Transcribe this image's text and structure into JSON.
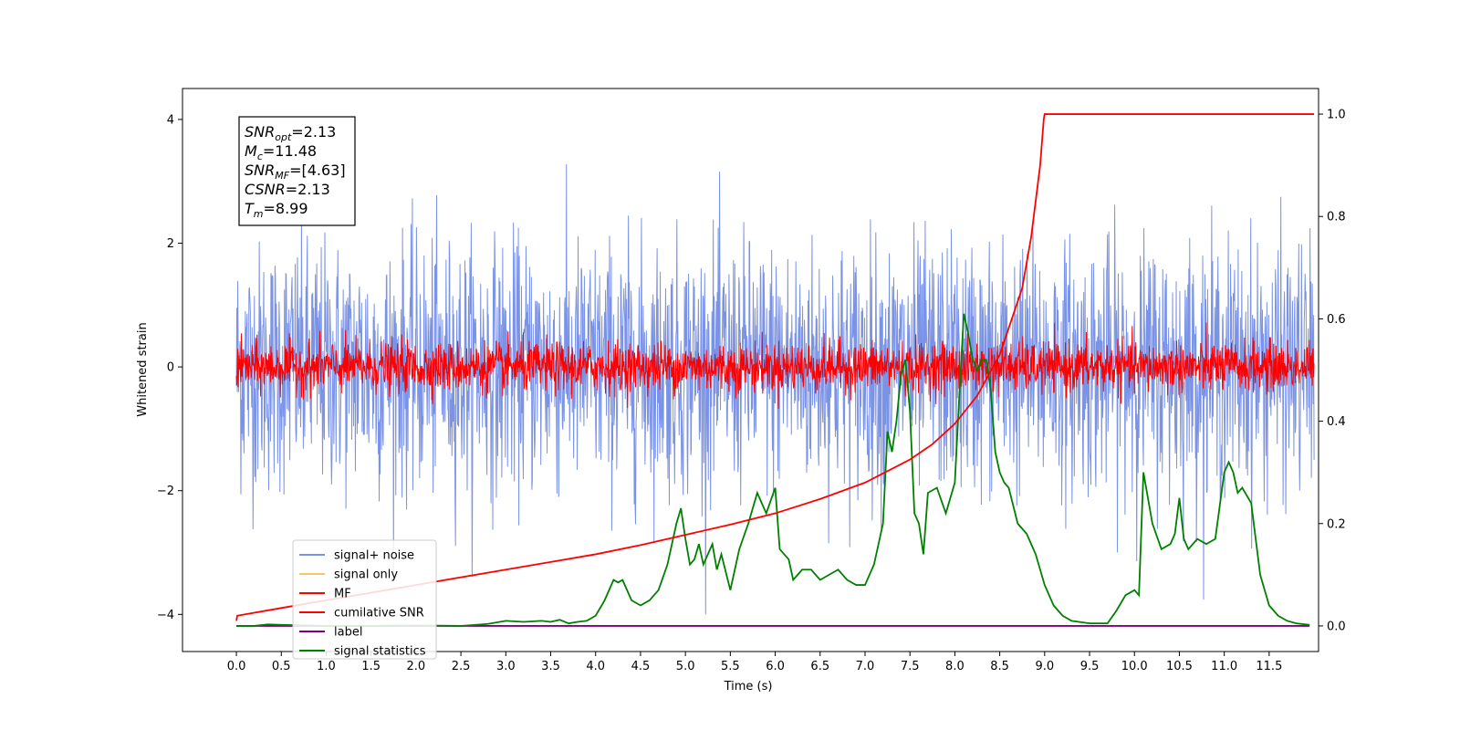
{
  "chart_data": {
    "type": "line",
    "xlabel": "Time (s)",
    "ylabel_left": "Whitened strain",
    "xlim": [
      -0.6,
      12.05
    ],
    "ylim_left": [
      -4.6,
      4.5
    ],
    "ylim_right": [
      -0.05,
      1.05
    ],
    "x_ticks": [
      "0.0",
      "0.5",
      "1.0",
      "1.5",
      "2.0",
      "2.5",
      "3.0",
      "3.5",
      "4.0",
      "4.5",
      "5.0",
      "5.5",
      "6.0",
      "6.5",
      "7.0",
      "7.5",
      "8.0",
      "8.5",
      "9.0",
      "9.5",
      "10.0",
      "10.5",
      "11.0",
      "11.5"
    ],
    "y_ticks_left": [
      "−4",
      "−2",
      "0",
      "2",
      "4"
    ],
    "y_ticks_right": [
      "0.0",
      "0.2",
      "0.4",
      "0.6",
      "0.8",
      "1.0"
    ],
    "legend_placement": "lower-left",
    "annotation": [
      {
        "var": "SNR",
        "sub": "opt",
        "value": "=2.13"
      },
      {
        "var": "M",
        "sub": "c",
        "value": "=11.48"
      },
      {
        "var": "SNR",
        "sub": "MF",
        "value": "=[4.63]"
      },
      {
        "var": "CSNR",
        "sub": "",
        "value": "=2.13"
      },
      {
        "var": "T",
        "sub": "m",
        "value": "=8.99"
      }
    ],
    "series": [
      {
        "name": "signal+ noise",
        "color": "#7b93e6",
        "axis": "left",
        "x_range": [
          0,
          12.0
        ],
        "std": 1.0,
        "note_shape": "noise"
      },
      {
        "name": "signal only",
        "color": "#f5c768",
        "axis": "left",
        "values": []
      },
      {
        "name": "MF",
        "color": "#ff0000",
        "axis": "left",
        "x_range": [
          0,
          12.0
        ],
        "std": 0.2,
        "note_shape": "noise"
      },
      {
        "name": "cumilative SNR",
        "color": "#ff0000",
        "axis": "right",
        "x": [
          0.0,
          0.01,
          0.5,
          1.0,
          1.5,
          2.0,
          2.5,
          3.0,
          3.5,
          4.0,
          4.5,
          5.0,
          5.5,
          6.0,
          6.5,
          7.0,
          7.5,
          7.75,
          8.0,
          8.25,
          8.5,
          8.75,
          8.85,
          8.95,
          8.99,
          9.0,
          12.0
        ],
        "values": [
          0.01,
          0.02,
          0.035,
          0.05,
          0.065,
          0.08,
          0.095,
          0.11,
          0.125,
          0.14,
          0.158,
          0.178,
          0.198,
          0.22,
          0.248,
          0.28,
          0.325,
          0.355,
          0.395,
          0.45,
          0.53,
          0.66,
          0.76,
          0.9,
          0.99,
          1.0,
          1.0
        ]
      },
      {
        "name": "label",
        "color": "#800080",
        "axis": "right",
        "x": [
          0.0,
          11.95
        ],
        "values": [
          0.0,
          0.0
        ]
      },
      {
        "name": "signal statistics",
        "color": "#008000",
        "axis": "right",
        "x": [
          0.0,
          0.2,
          0.35,
          0.5,
          0.8,
          1.0,
          1.5,
          2.0,
          2.5,
          2.8,
          3.0,
          3.2,
          3.4,
          3.5,
          3.6,
          3.7,
          3.8,
          3.9,
          4.0,
          4.1,
          4.2,
          4.25,
          4.3,
          4.4,
          4.5,
          4.6,
          4.7,
          4.8,
          4.9,
          4.95,
          5.0,
          5.05,
          5.1,
          5.15,
          5.2,
          5.3,
          5.35,
          5.4,
          5.5,
          5.6,
          5.7,
          5.8,
          5.9,
          6.0,
          6.05,
          6.1,
          6.15,
          6.2,
          6.3,
          6.4,
          6.5,
          6.6,
          6.7,
          6.8,
          6.9,
          7.0,
          7.1,
          7.2,
          7.25,
          7.3,
          7.35,
          7.4,
          7.45,
          7.5,
          7.55,
          7.6,
          7.65,
          7.7,
          7.8,
          7.9,
          8.0,
          8.05,
          8.1,
          8.15,
          8.2,
          8.25,
          8.3,
          8.35,
          8.4,
          8.45,
          8.5,
          8.55,
          8.6,
          8.7,
          8.8,
          8.9,
          9.0,
          9.1,
          9.2,
          9.3,
          9.5,
          9.7,
          9.8,
          9.9,
          10.0,
          10.05,
          10.1,
          10.2,
          10.3,
          10.4,
          10.45,
          10.5,
          10.55,
          10.6,
          10.7,
          10.8,
          10.9,
          11.0,
          11.05,
          11.1,
          11.15,
          11.2,
          11.3,
          11.4,
          11.5,
          11.6,
          11.7,
          11.8,
          11.95
        ],
        "values": [
          0.0,
          0.0,
          0.003,
          0.002,
          0.001,
          0.0,
          0.0,
          0.001,
          0.0,
          0.004,
          0.01,
          0.008,
          0.01,
          0.008,
          0.012,
          0.005,
          0.008,
          0.01,
          0.02,
          0.05,
          0.09,
          0.085,
          0.09,
          0.05,
          0.04,
          0.05,
          0.07,
          0.12,
          0.2,
          0.23,
          0.17,
          0.12,
          0.13,
          0.16,
          0.12,
          0.16,
          0.11,
          0.14,
          0.07,
          0.15,
          0.2,
          0.26,
          0.22,
          0.27,
          0.15,
          0.14,
          0.13,
          0.09,
          0.11,
          0.11,
          0.09,
          0.1,
          0.11,
          0.09,
          0.08,
          0.08,
          0.12,
          0.2,
          0.38,
          0.34,
          0.4,
          0.49,
          0.52,
          0.42,
          0.22,
          0.2,
          0.14,
          0.26,
          0.27,
          0.22,
          0.28,
          0.45,
          0.61,
          0.57,
          0.52,
          0.5,
          0.52,
          0.52,
          0.46,
          0.34,
          0.3,
          0.28,
          0.27,
          0.2,
          0.18,
          0.14,
          0.08,
          0.04,
          0.02,
          0.01,
          0.005,
          0.005,
          0.03,
          0.06,
          0.07,
          0.06,
          0.3,
          0.2,
          0.15,
          0.16,
          0.18,
          0.25,
          0.17,
          0.15,
          0.17,
          0.16,
          0.17,
          0.3,
          0.32,
          0.3,
          0.26,
          0.27,
          0.24,
          0.1,
          0.04,
          0.02,
          0.01,
          0.005,
          0.002
        ]
      }
    ]
  }
}
